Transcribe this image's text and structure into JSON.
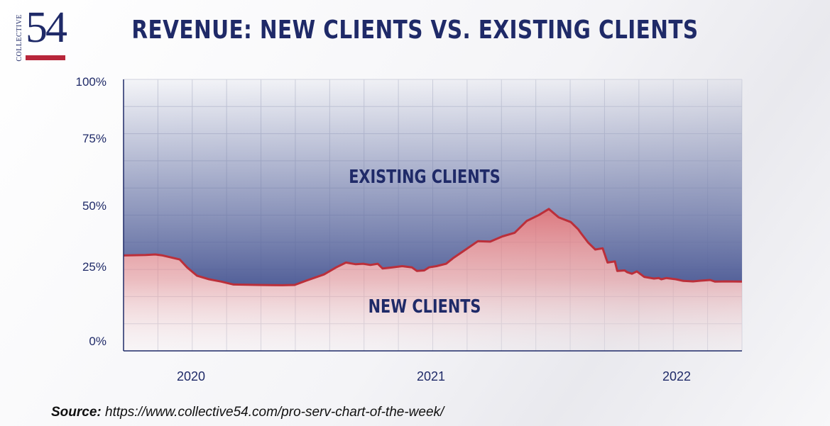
{
  "logo": {
    "side_text": "COLLECTIVE",
    "number": "54"
  },
  "colors": {
    "navy": "#1f2a68",
    "existing_fill": "#5d6aa0",
    "new_fill": "#d9646b",
    "line": "#bb2f3a"
  },
  "source": {
    "label": "Source:",
    "url": "https://www.collective54.com/pro-serv-chart-of-the-week/"
  },
  "chart_data": {
    "type": "area",
    "title": "REVENUE: NEW CLIENTS VS. EXISTING CLIENTS",
    "xlabel": "",
    "ylabel": "",
    "y_ticks": [
      "0%",
      "25%",
      "50%",
      "75%",
      "100%"
    ],
    "x_ticks": [
      {
        "label": "2020",
        "x": 2020.0
      },
      {
        "label": "2021",
        "x": 2021.0
      },
      {
        "label": "2022",
        "x": 2022.0
      }
    ],
    "xlim": [
      2019.7,
      2022.23
    ],
    "ylim": [
      0,
      100
    ],
    "grid": true,
    "series": [
      {
        "name": "NEW CLIENTS",
        "role": "lower-area"
      },
      {
        "name": "EXISTING CLIENTS",
        "role": "upper-area"
      }
    ],
    "new_clients_share": {
      "x": [
        2019.7,
        2019.79,
        2019.83,
        2019.86,
        2019.93,
        2019.96,
        2020.0,
        2020.05,
        2020.1,
        2020.15,
        2020.25,
        2020.35,
        2020.4,
        2020.45,
        2020.52,
        2020.57,
        2020.61,
        2020.65,
        2020.68,
        2020.71,
        2020.74,
        2020.76,
        2020.8,
        2020.84,
        2020.88,
        2020.9,
        2020.93,
        2020.95,
        2020.98,
        2021.02,
        2021.05,
        2021.1,
        2021.15,
        2021.2,
        2021.25,
        2021.3,
        2021.35,
        2021.4,
        2021.44,
        2021.48,
        2021.53,
        2021.56,
        2021.57,
        2021.6,
        2021.63,
        2021.66,
        2021.68,
        2021.71,
        2021.72,
        2021.75,
        2021.76,
        2021.78,
        2021.8,
        2021.83,
        2021.87,
        2021.89,
        2021.9,
        2021.92,
        2021.96,
        2021.99,
        2022.03,
        2022.06,
        2022.1,
        2022.12,
        2022.16,
        2022.23
      ],
      "y": [
        36.5,
        36.7,
        36.9,
        36.5,
        34.8,
        31.5,
        28.0,
        26.5,
        25.5,
        24.3,
        24.1,
        24.0,
        24.1,
        26.0,
        28.5,
        31.5,
        33.5,
        32.8,
        33.0,
        32.5,
        33.0,
        31.0,
        31.5,
        32.0,
        31.5,
        30.0,
        30.2,
        31.5,
        32.0,
        33.0,
        35.5,
        39.0,
        42.5,
        42.3,
        44.5,
        46.0,
        51.0,
        53.5,
        56.0,
        52.5,
        50.5,
        47.5,
        46.0,
        42.0,
        39.0,
        39.5,
        33.5,
        34.0,
        30.0,
        30.2,
        29.5,
        28.8,
        29.8,
        27.5,
        26.8,
        27.0,
        26.5,
        27.0,
        26.5,
        25.8,
        25.6,
        25.9,
        26.2,
        25.5,
        25.6,
        25.5
      ]
    },
    "series_labels": {
      "existing": "EXISTING CLIENTS",
      "new": "NEW CLIENTS"
    }
  }
}
